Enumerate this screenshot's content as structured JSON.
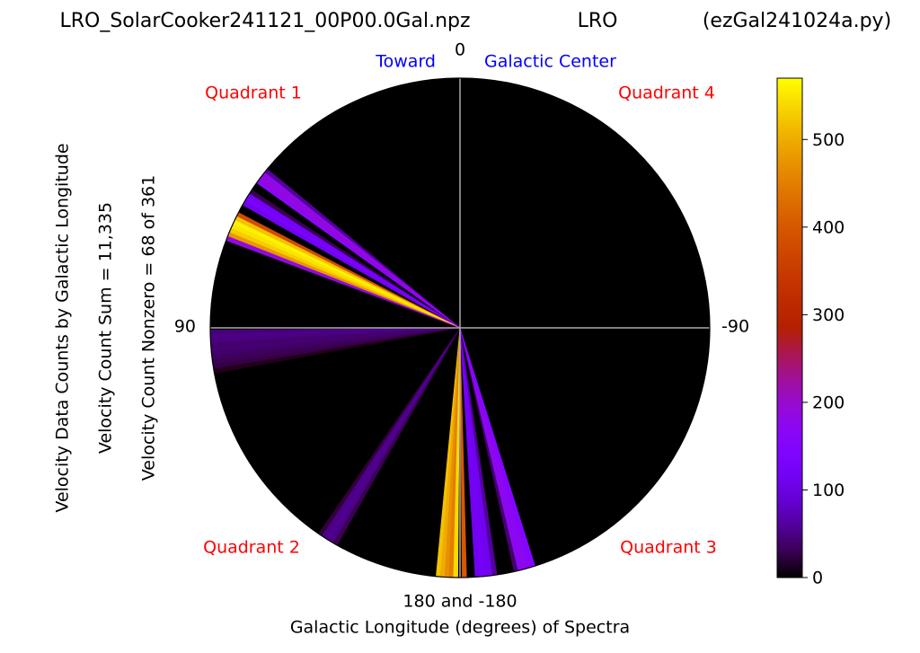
{
  "chart_data": {
    "type": "polar-wedge",
    "title": "LRO_SolarCooker241121_00P00.0Gal.npz",
    "subtitle": "LRO",
    "source": "(ezGal241024a.py)",
    "theta_labels": {
      "top": "0",
      "left": "90",
      "right": "-90",
      "bottom": "180 and -180"
    },
    "annotations": {
      "toward": "Toward",
      "center": "Galactic Center",
      "q1": "Quadrant 1",
      "q4": "Quadrant 4",
      "q2": "Quadrant 2",
      "q3": "Quadrant 3"
    },
    "xlabel": "Galactic Longitude (degrees) of Spectra",
    "side_labels": [
      "Velocity Data Counts by Galactic Longitude",
      "Velocity Count Sum = 11,335",
      "Velocity Count Nonzero = 68 of 361"
    ],
    "colormap": "gnuplot",
    "clim": [
      0,
      570
    ],
    "cticks": [
      0,
      100,
      200,
      300,
      400,
      500
    ],
    "grid": true,
    "x": [
      51,
      52,
      53,
      54,
      57,
      58,
      59,
      60,
      63,
      64,
      65,
      66,
      67,
      68,
      69,
      91,
      92,
      93,
      94,
      95,
      96,
      97,
      98,
      99,
      100,
      146,
      147,
      148,
      149,
      150,
      175,
      176,
      177,
      178,
      179,
      -179,
      -176,
      -175,
      -174,
      -173,
      -172,
      -167,
      -166,
      -165,
      -164,
      -163
    ],
    "values": [
      60,
      180,
      190,
      170,
      30,
      120,
      130,
      110,
      380,
      520,
      560,
      550,
      530,
      480,
      190,
      45,
      50,
      48,
      40,
      42,
      38,
      35,
      30,
      25,
      10,
      20,
      50,
      55,
      50,
      30,
      520,
      500,
      470,
      450,
      540,
      400,
      110,
      120,
      115,
      110,
      60,
      40,
      170,
      175,
      165,
      150
    ]
  }
}
